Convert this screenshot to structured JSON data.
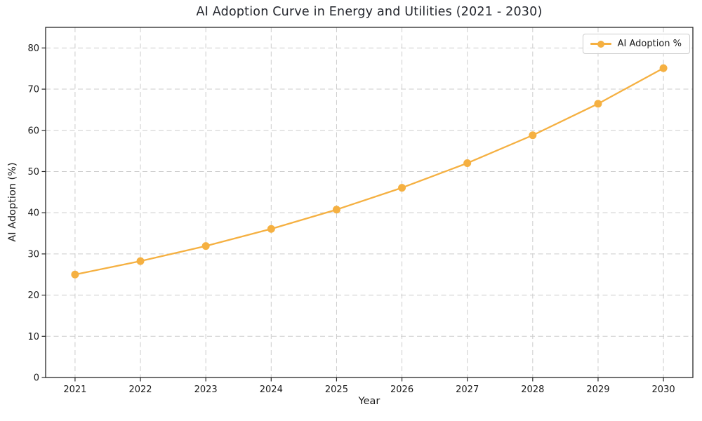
{
  "chart_data": {
    "type": "line",
    "title": "AI Adoption Curve in Energy and Utilities (2021 - 2030)",
    "xlabel": "Year",
    "ylabel": "AI Adoption (%)",
    "x": [
      2021,
      2022,
      2023,
      2024,
      2025,
      2026,
      2027,
      2028,
      2029,
      2030
    ],
    "series": [
      {
        "name": "AI Adoption %",
        "values": [
          25.0,
          28.25,
          31.92,
          36.07,
          40.76,
          46.06,
          52.04,
          58.81,
          66.46,
          75.1
        ],
        "color": "#F5B041",
        "marker": "circle",
        "line_width": 2.3,
        "marker_radius": 5.5
      }
    ],
    "ylim": [
      0,
      85
    ],
    "yticks": [
      0,
      10,
      20,
      30,
      40,
      50,
      60,
      70,
      80
    ],
    "grid": true,
    "grid_style": "dashed",
    "legend": {
      "position": "upper right",
      "entries": [
        "AI Adoption %"
      ]
    }
  },
  "colors": {
    "accent": "#F5B041",
    "grid": "#cccccc",
    "spine": "#262626",
    "text": "#1a1a1a",
    "title": "#22252c",
    "background": "#ffffff",
    "legend_border": "#cccccc"
  }
}
